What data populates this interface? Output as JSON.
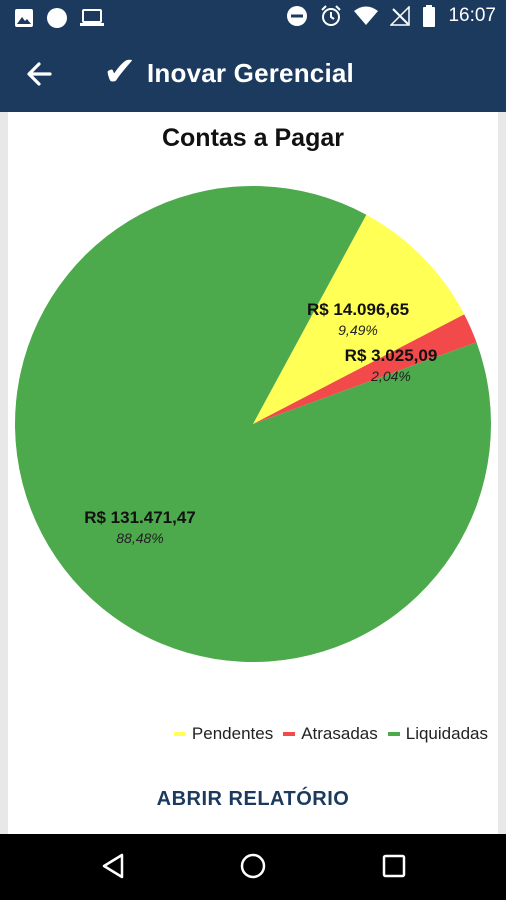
{
  "status_bar": {
    "time": "16:07",
    "left_icons": [
      "image-icon",
      "circle-icon",
      "laptop-icon"
    ],
    "right_icons": [
      "dnd-icon",
      "alarm-icon",
      "wifi-icon",
      "no-signal-icon",
      "battery-icon"
    ]
  },
  "app_bar": {
    "title": "Inovar Gerencial",
    "check_glyph": "✔"
  },
  "chart_data": {
    "type": "pie",
    "title": "Contas a Pagar",
    "slices": [
      {
        "name": "Pendentes",
        "value_label": "R$ 14.096,65",
        "percent_label": "9,49%",
        "percent": 9.49,
        "color": "#ffff55"
      },
      {
        "name": "Atrasadas",
        "value_label": "R$ 3.025,09",
        "percent_label": "2,04%",
        "percent": 2.04,
        "color": "#f24a4a"
      },
      {
        "name": "Liquidadas",
        "value_label": "R$ 131.471,47",
        "percent_label": "88,48%",
        "percent": 88.48,
        "color": "#4caa4c"
      }
    ],
    "legend_placement": "bottom-right"
  },
  "actions": {
    "open_report": "ABRIR RELATÓRIO"
  },
  "nav_bar": {
    "icons": [
      "back-triangle-icon",
      "home-circle-icon",
      "recents-square-icon"
    ]
  }
}
